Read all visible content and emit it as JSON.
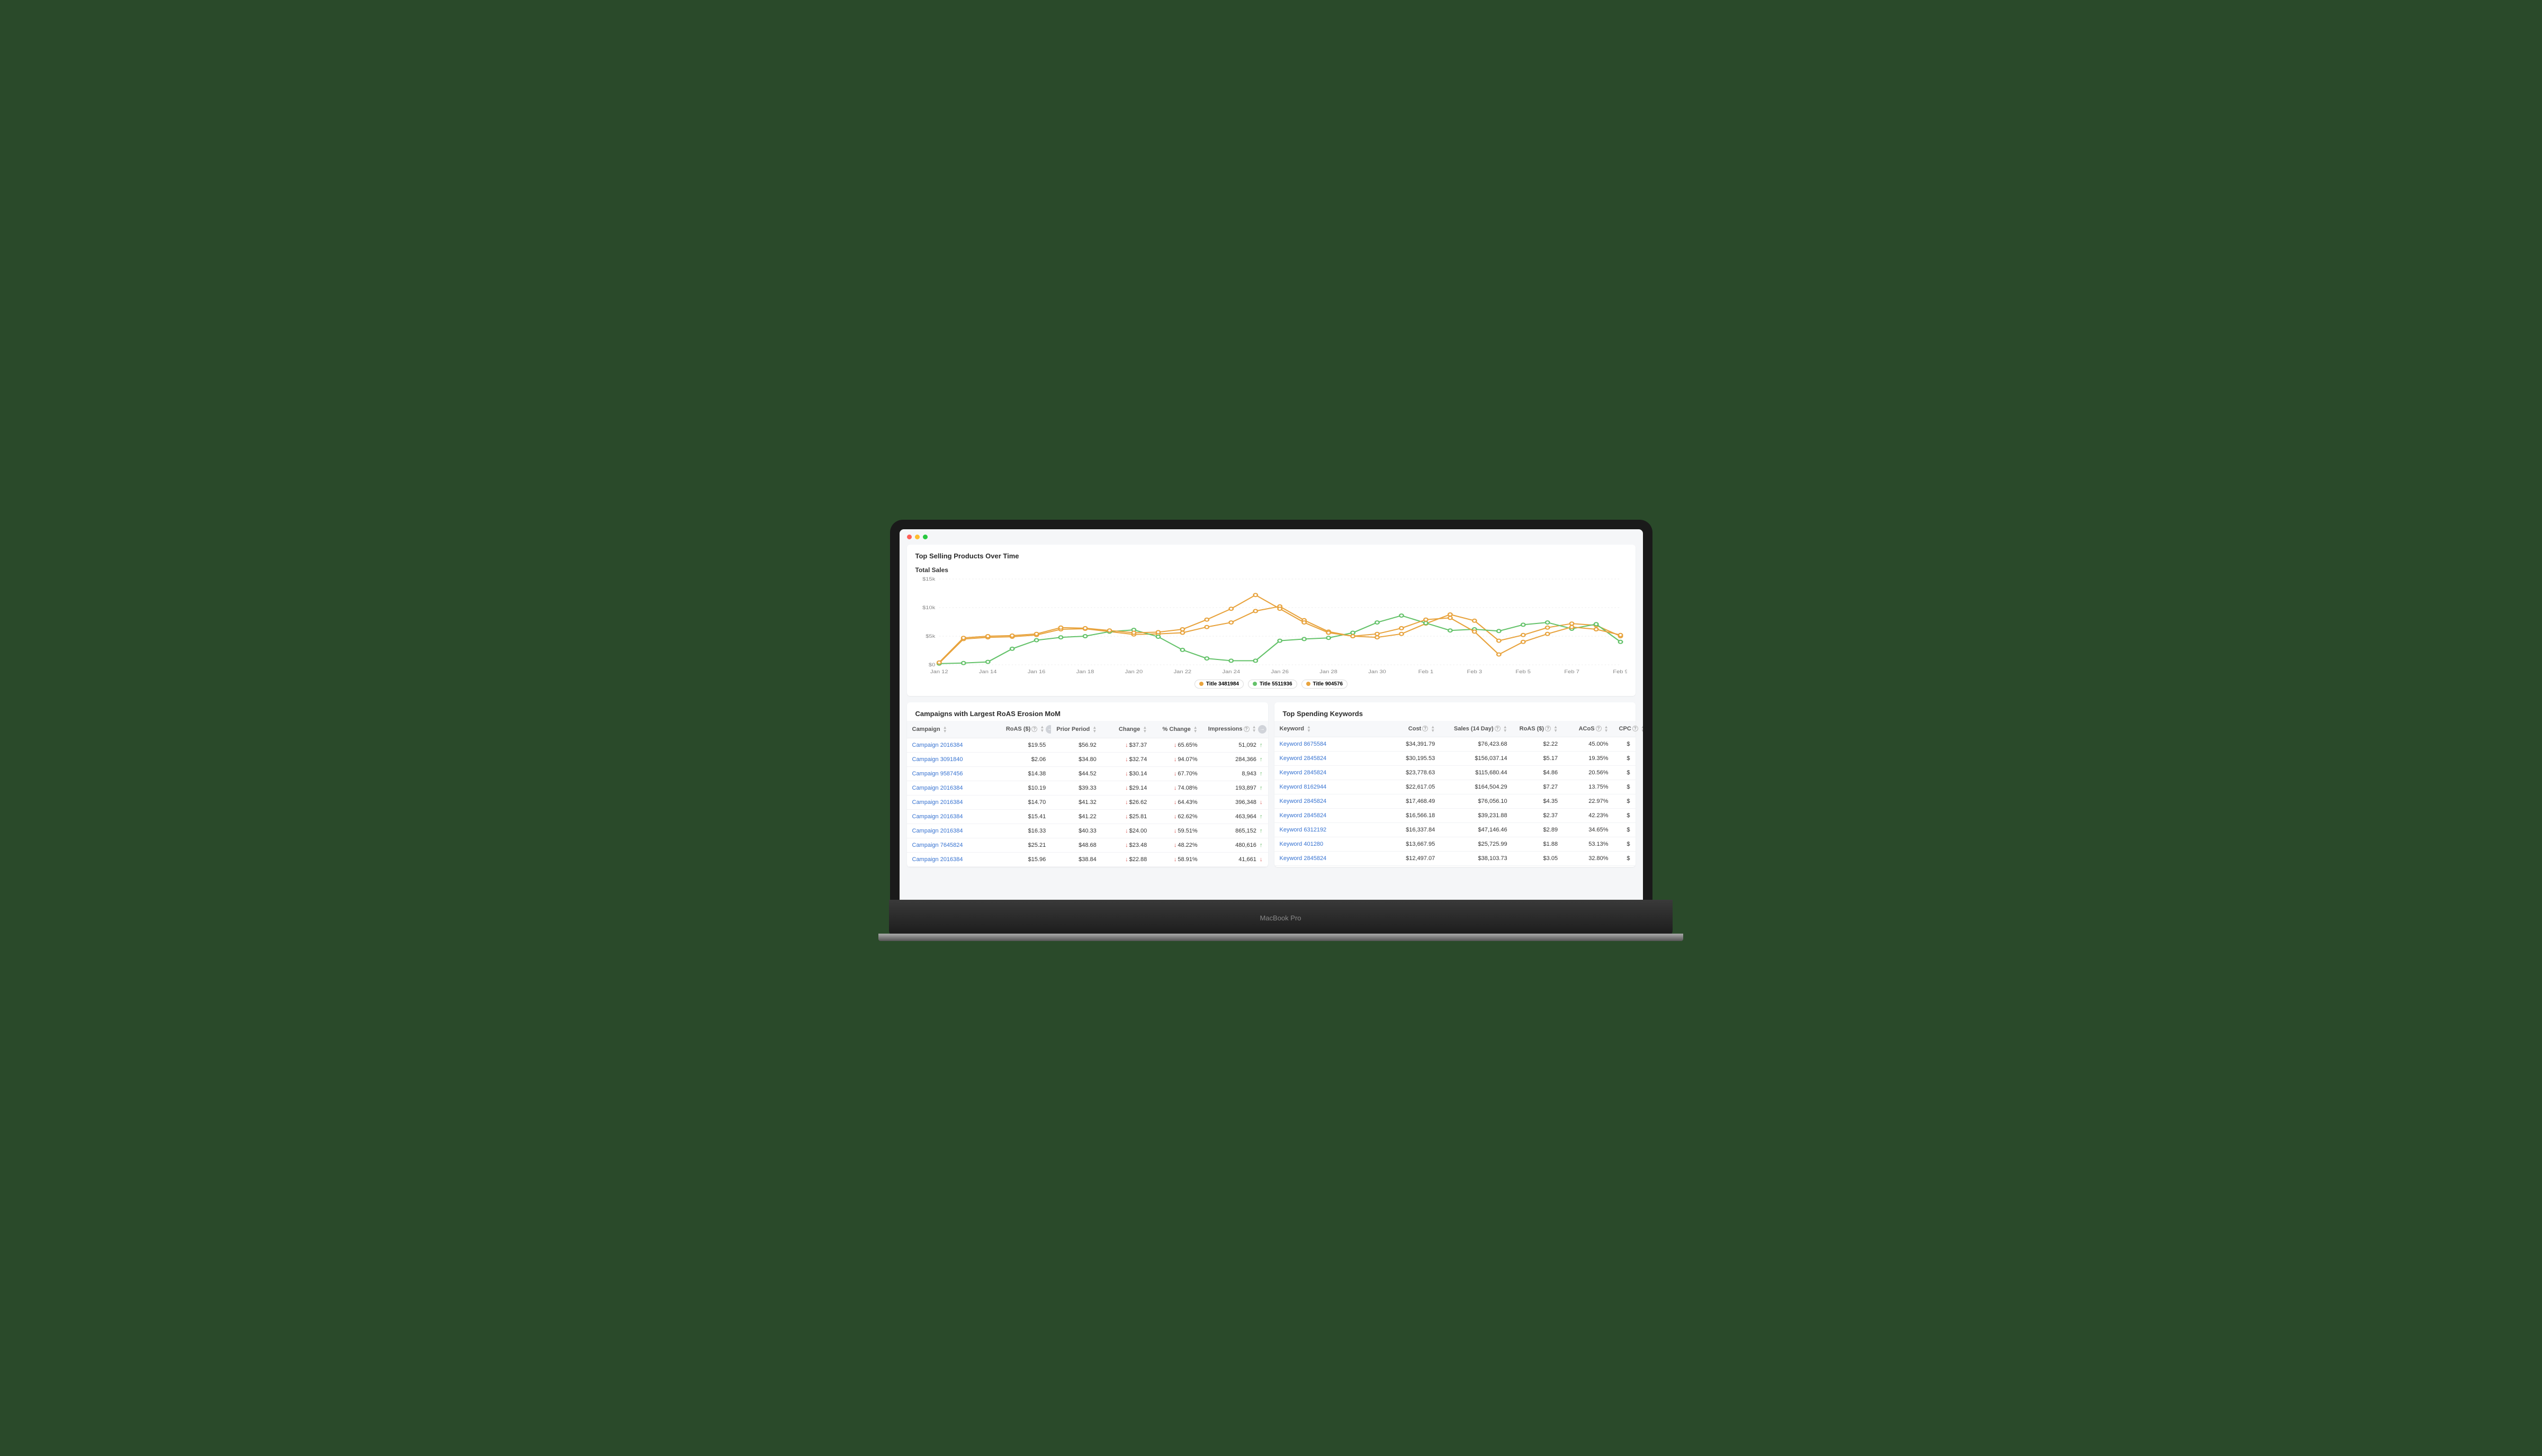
{
  "device_label": "MacBook Pro",
  "chart_card": {
    "title": "Top Selling Products Over Time",
    "subtitle": "Total Sales",
    "type": "line",
    "background_color": "#ffffff",
    "grid_color": "#ececec",
    "axis_label_color": "#888888",
    "axis_label_fontsize": 9,
    "x_labels": [
      "Jan 12",
      "Jan 14",
      "Jan 16",
      "Jan 18",
      "Jan 20",
      "Jan 22",
      "Jan 24",
      "Jan 26",
      "Jan 28",
      "Jan 30",
      "Feb 1",
      "Feb 3",
      "Feb 5",
      "Feb 7",
      "Feb 9"
    ],
    "y_labels": [
      "$0",
      "$5k",
      "$10k",
      "$15k"
    ],
    "ylim": [
      0,
      15000
    ],
    "ytick_step": 5000,
    "x_count": 29,
    "line_width": 2,
    "marker_radius": 3,
    "series": [
      {
        "name": "Title 3481984",
        "color": "#e8a33d",
        "values": [
          300,
          4500,
          4800,
          4900,
          5200,
          6200,
          6300,
          5800,
          5300,
          5400,
          5600,
          6600,
          7400,
          9400,
          10200,
          7800,
          5800,
          5000,
          4800,
          5400,
          7200,
          8800,
          7700,
          4200,
          5200,
          6500,
          7200,
          6900,
          5000
        ]
      },
      {
        "name": "Title 5511936",
        "color": "#64c26a",
        "values": [
          200,
          300,
          500,
          2800,
          4300,
          4800,
          5000,
          5800,
          6100,
          4900,
          2600,
          1100,
          700,
          700,
          4200,
          4500,
          4700,
          5600,
          7400,
          8600,
          7300,
          6000,
          6200,
          5900,
          7000,
          7400,
          6300,
          7100,
          4000
        ]
      },
      {
        "name": "Title 904576",
        "color": "#e8a33d",
        "values": [
          400,
          4700,
          5000,
          5100,
          5400,
          6500,
          6400,
          6000,
          5600,
          5700,
          6200,
          7900,
          9800,
          12200,
          9800,
          7400,
          5600,
          5000,
          5400,
          6400,
          7900,
          8200,
          5800,
          1800,
          4000,
          5400,
          6600,
          6200,
          5200
        ]
      }
    ]
  },
  "campaigns_card": {
    "title": "Campaigns with Largest RoAS Erosion MoM",
    "columns": [
      "Campaign",
      "RoAS ($)",
      "Prior Period",
      "Change",
      "% Change",
      "Impressions"
    ],
    "col_has_help": [
      false,
      true,
      false,
      false,
      false,
      true
    ],
    "col_widths": [
      "26%",
      "14%",
      "14%",
      "14%",
      "14%",
      "18%"
    ],
    "rows": [
      {
        "campaign": "Campaign 2016384",
        "roas": "$19.55",
        "prior": "$56.92",
        "change": "$37.37",
        "pct": "65.65%",
        "impr": "51,092",
        "dir": "up"
      },
      {
        "campaign": "Campaign 3091840",
        "roas": "$2.06",
        "prior": "$34.80",
        "change": "$32.74",
        "pct": "94.07%",
        "impr": "284,366",
        "dir": "up"
      },
      {
        "campaign": "Campaign 9587456",
        "roas": "$14.38",
        "prior": "$44.52",
        "change": "$30.14",
        "pct": "67.70%",
        "impr": "8,943",
        "dir": "up"
      },
      {
        "campaign": "Campaign 2016384",
        "roas": "$10.19",
        "prior": "$39.33",
        "change": "$29.14",
        "pct": "74.08%",
        "impr": "193,897",
        "dir": "up"
      },
      {
        "campaign": "Campaign 2016384",
        "roas": "$14.70",
        "prior": "$41.32",
        "change": "$26.62",
        "pct": "64.43%",
        "impr": "396,348",
        "dir": "down"
      },
      {
        "campaign": "Campaign 2016384",
        "roas": "$15.41",
        "prior": "$41.22",
        "change": "$25.81",
        "pct": "62.62%",
        "impr": "463,964",
        "dir": "up"
      },
      {
        "campaign": "Campaign 2016384",
        "roas": "$16.33",
        "prior": "$40.33",
        "change": "$24.00",
        "pct": "59.51%",
        "impr": "865,152",
        "dir": "up"
      },
      {
        "campaign": "Campaign 7645824",
        "roas": "$25.21",
        "prior": "$48.68",
        "change": "$23.48",
        "pct": "48.22%",
        "impr": "480,616",
        "dir": "up"
      },
      {
        "campaign": "Campaign 2016384",
        "roas": "$15.96",
        "prior": "$38.84",
        "change": "$22.88",
        "pct": "58.91%",
        "impr": "41,661",
        "dir": "down"
      }
    ]
  },
  "keywords_card": {
    "title": "Top Spending Keywords",
    "columns": [
      "Keyword",
      "Cost",
      "Sales (14 Day)",
      "RoAS ($)",
      "ACoS",
      "CPC"
    ],
    "col_has_help": [
      false,
      true,
      true,
      true,
      true,
      true
    ],
    "col_widths": [
      "28%",
      "18%",
      "20%",
      "14%",
      "14%",
      "6%"
    ],
    "rows": [
      {
        "keyword": "Keyword 8675584",
        "cost": "$34,391.79",
        "sales": "$76,423.68",
        "roas": "$2.22",
        "acos": "45.00%",
        "cpc": "$"
      },
      {
        "keyword": "Keyword 2845824",
        "cost": "$30,195.53",
        "sales": "$156,037.14",
        "roas": "$5.17",
        "acos": "19.35%",
        "cpc": "$"
      },
      {
        "keyword": "Keyword 2845824",
        "cost": "$23,778.63",
        "sales": "$115,680.44",
        "roas": "$4.86",
        "acos": "20.56%",
        "cpc": "$"
      },
      {
        "keyword": "Keyword 8162944",
        "cost": "$22,617.05",
        "sales": "$164,504.29",
        "roas": "$7.27",
        "acos": "13.75%",
        "cpc": "$"
      },
      {
        "keyword": "Keyword 2845824",
        "cost": "$17,468.49",
        "sales": "$76,056.10",
        "roas": "$4.35",
        "acos": "22.97%",
        "cpc": "$"
      },
      {
        "keyword": "Keyword 2845824",
        "cost": "$16,566.18",
        "sales": "$39,231.88",
        "roas": "$2.37",
        "acos": "42.23%",
        "cpc": "$"
      },
      {
        "keyword": "Keyword 6312192",
        "cost": "$16,337.84",
        "sales": "$47,146.46",
        "roas": "$2.89",
        "acos": "34.65%",
        "cpc": "$"
      },
      {
        "keyword": "Keyword 401280",
        "cost": "$13,667.95",
        "sales": "$25,725.99",
        "roas": "$1.88",
        "acos": "53.13%",
        "cpc": "$"
      },
      {
        "keyword": "Keyword 2845824",
        "cost": "$12,497.07",
        "sales": "$38,103.73",
        "roas": "$3.05",
        "acos": "32.80%",
        "cpc": "$"
      }
    ]
  }
}
